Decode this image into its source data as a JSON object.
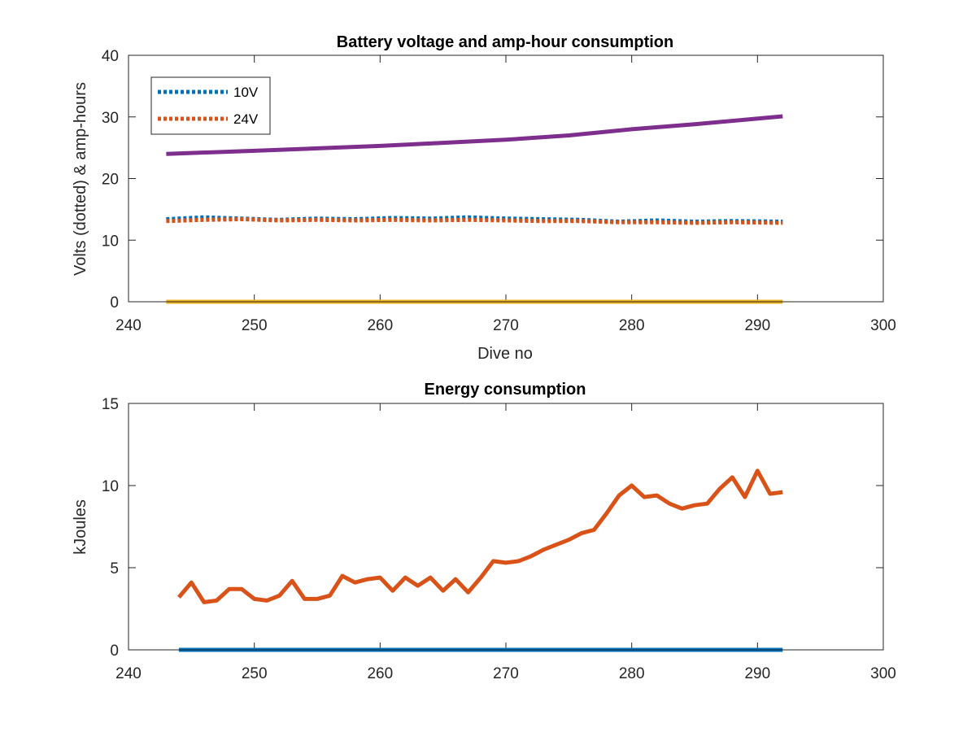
{
  "chart_data": [
    {
      "type": "line",
      "title": "Battery voltage and amp-hour consumption",
      "xlabel": "Dive no",
      "ylabel": "Volts (dotted) & amp-hours",
      "xlim": [
        240,
        300
      ],
      "ylim": [
        0,
        40
      ],
      "xticks": [
        "240",
        "250",
        "260",
        "270",
        "280",
        "290",
        "300"
      ],
      "yticks": [
        "0",
        "10",
        "20",
        "30",
        "40"
      ],
      "legend_position": "top-left",
      "grid": false,
      "series": [
        {
          "name": "10V",
          "style": "dotted",
          "color": "#0072BD",
          "x": [
            243,
            246,
            249,
            252,
            255,
            258,
            261,
            264,
            267,
            270,
            273,
            276,
            279,
            282,
            285,
            288,
            292
          ],
          "y": [
            13.4,
            13.7,
            13.5,
            13.3,
            13.5,
            13.4,
            13.6,
            13.5,
            13.7,
            13.5,
            13.4,
            13.3,
            13.0,
            13.2,
            13.0,
            13.1,
            13.0
          ]
        },
        {
          "name": "24V",
          "style": "dotted",
          "color": "#D95319",
          "x": [
            243,
            246,
            249,
            252,
            255,
            258,
            261,
            264,
            267,
            270,
            273,
            276,
            279,
            282,
            285,
            288,
            292
          ],
          "y": [
            13.1,
            13.3,
            13.4,
            13.2,
            13.3,
            13.2,
            13.3,
            13.2,
            13.3,
            13.2,
            13.1,
            13.1,
            12.9,
            12.9,
            12.8,
            12.9,
            12.8
          ]
        },
        {
          "style": "solid",
          "color": "#EDB120",
          "x": [
            243,
            292
          ],
          "y": [
            0,
            0
          ]
        },
        {
          "style": "solid",
          "color": "#7E2F8E",
          "x": [
            243,
            250,
            255,
            260,
            265,
            270,
            275,
            280,
            285,
            292
          ],
          "y": [
            24.0,
            24.5,
            24.9,
            25.3,
            25.8,
            26.3,
            27.0,
            28.0,
            28.8,
            30.1
          ]
        }
      ]
    },
    {
      "type": "line",
      "title": "Energy consumption",
      "xlabel": "",
      "ylabel": "kJoules",
      "xlim": [
        240,
        300
      ],
      "ylim": [
        0,
        15
      ],
      "xticks": [
        "240",
        "250",
        "260",
        "270",
        "280",
        "290",
        "300"
      ],
      "yticks": [
        "0",
        "5",
        "10",
        "15"
      ],
      "grid": false,
      "series": [
        {
          "style": "solid",
          "color": "#0072BD",
          "x": [
            244,
            292
          ],
          "y": [
            0,
            0
          ]
        },
        {
          "style": "solid",
          "color": "#D95319",
          "x": [
            244,
            245,
            246,
            247,
            248,
            249,
            250,
            251,
            252,
            253,
            254,
            255,
            256,
            257,
            258,
            259,
            260,
            261,
            262,
            263,
            264,
            265,
            266,
            267,
            268,
            269,
            270,
            271,
            272,
            273,
            274,
            275,
            276,
            277,
            278,
            279,
            280,
            281,
            282,
            283,
            284,
            285,
            286,
            287,
            288,
            289,
            290,
            291,
            292
          ],
          "y": [
            3.2,
            4.1,
            2.9,
            3.0,
            3.7,
            3.7,
            3.1,
            3.0,
            3.3,
            4.2,
            3.1,
            3.1,
            3.3,
            4.5,
            4.1,
            4.3,
            4.4,
            3.6,
            4.4,
            3.9,
            4.4,
            3.6,
            4.3,
            3.5,
            4.4,
            5.4,
            5.3,
            5.4,
            5.7,
            6.1,
            6.4,
            6.7,
            7.1,
            7.3,
            8.3,
            9.4,
            10.0,
            9.3,
            9.4,
            8.9,
            8.6,
            8.8,
            8.9,
            9.8,
            10.5,
            9.3,
            10.9,
            9.5,
            9.6
          ]
        }
      ]
    }
  ]
}
